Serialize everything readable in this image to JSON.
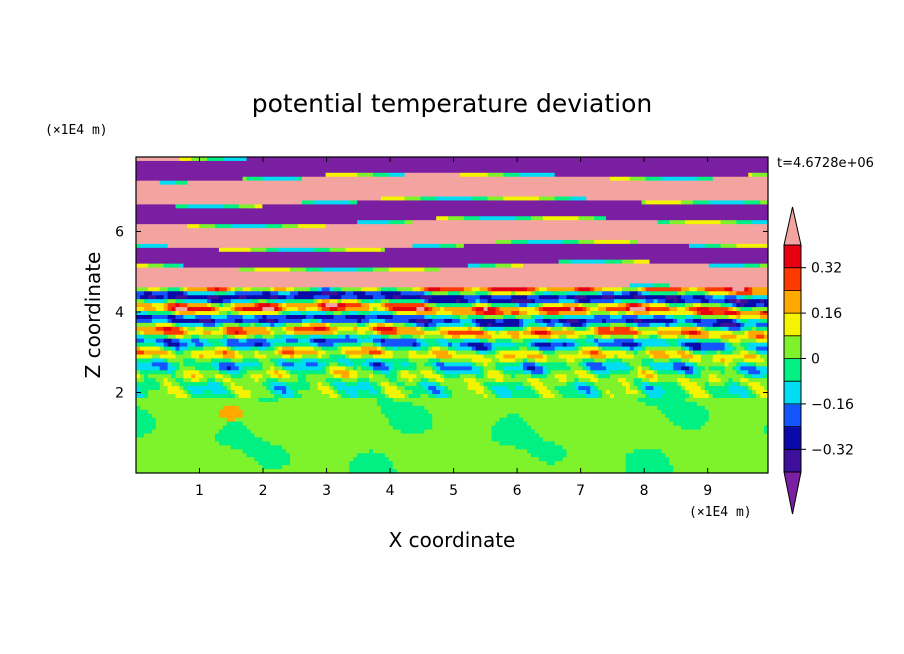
{
  "chart_data": {
    "type": "heatmap",
    "title": "potential temperature deviation",
    "xlabel": "X coordinate",
    "ylabel": "Z coordinate",
    "x_unit": "(×1E4 m)",
    "z_unit": "(×1E4 m)",
    "time_label": "t=4.6728e+06",
    "xlim": [
      0,
      9.95
    ],
    "ylim": [
      0,
      7.85
    ],
    "x_ticks": [
      1,
      2,
      3,
      4,
      5,
      6,
      7,
      8,
      9
    ],
    "y_ticks": [
      2,
      4,
      6
    ],
    "colorbar": {
      "levels": [
        -0.4,
        -0.32,
        -0.24,
        -0.16,
        -0.08,
        0,
        0.08,
        0.16,
        0.24,
        0.32,
        0.4
      ],
      "labeled_levels": [
        "0.32",
        "0.16",
        "0",
        "−0.16",
        "−0.32"
      ],
      "colors": [
        "#7b1fa2",
        "#3d0f9a",
        "#0a0aa8",
        "#1455ff",
        "#00ddf2",
        "#00f084",
        "#7ef22a",
        "#f4f400",
        "#ffa800",
        "#ff3a00",
        "#e60010",
        "#f3a4a0"
      ],
      "under_color": "#7b1fa2",
      "over_color": "#f3a4a0"
    }
  }
}
